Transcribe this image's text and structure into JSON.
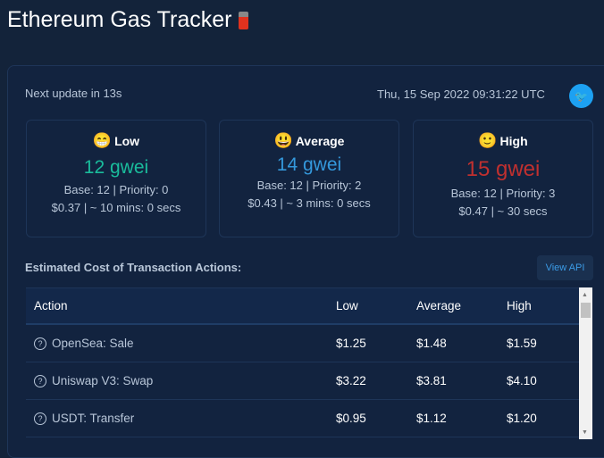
{
  "header": {
    "title": "Ethereum Gas Tracker",
    "icon": "fuel-pump-icon"
  },
  "status": {
    "next_update": "Next update in 13s",
    "timestamp": "Thu, 15 Sep 2022 09:31:22 UTC",
    "share_icon": "twitter-icon"
  },
  "cards": [
    {
      "emoji": "😁",
      "label": "Low",
      "gwei": "12 gwei",
      "color": "#1abc9c",
      "base_priority": "Base: 12 | Priority: 0",
      "cost_time": "$0.37 | ~ 10 mins: 0 secs"
    },
    {
      "emoji": "😃",
      "label": "Average",
      "gwei": "14 gwei",
      "color": "#3498db",
      "base_priority": "Base: 12 | Priority: 2",
      "cost_time": "$0.43 | ~ 3 mins: 0 secs"
    },
    {
      "emoji": "🙂",
      "label": "High",
      "gwei": "15 gwei",
      "color": "#c0302f",
      "base_priority": "Base: 12 | Priority: 3",
      "cost_time": "$0.47 | ~ 30 secs"
    }
  ],
  "actions": {
    "title": "Estimated Cost of Transaction Actions:",
    "view_api": "View API",
    "columns": [
      "Action",
      "Low",
      "Average",
      "High"
    ],
    "rows": [
      {
        "action": "OpenSea: Sale",
        "low": "$1.25",
        "average": "$1.48",
        "high": "$1.59"
      },
      {
        "action": "Uniswap V3: Swap",
        "low": "$3.22",
        "average": "$3.81",
        "high": "$4.10"
      },
      {
        "action": "USDT: Transfer",
        "low": "$0.95",
        "average": "$1.12",
        "high": "$1.20"
      }
    ]
  }
}
